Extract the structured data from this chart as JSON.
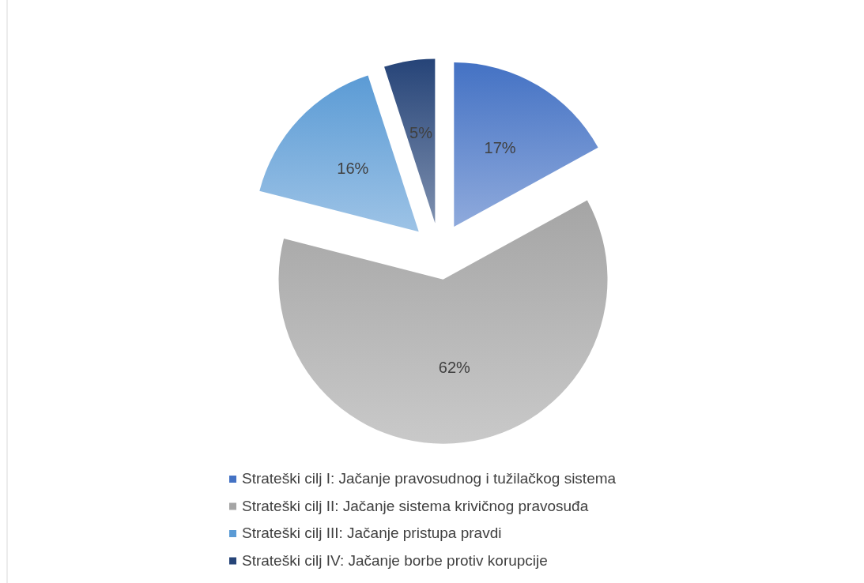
{
  "chart_data": {
    "type": "pie",
    "categories": [
      "Strateški cilj I: Jačanje pravosudnog i tužilačkog sistema",
      "Strateški cilj II: Jačanje sistema krivičnog pravosuđa",
      "Strateški cilj III: Jačanje pristupa pravdi",
      "Strateški cilj IV: Jačanje borbe protiv korupcije"
    ],
    "values": [
      17,
      62,
      16,
      5
    ],
    "colors": [
      "#4472c4",
      "#a5a5a5",
      "#5b9bd5",
      "#264478"
    ],
    "value_labels": [
      "17%",
      "62%",
      "16%",
      "5%"
    ],
    "legend": "bottom"
  }
}
